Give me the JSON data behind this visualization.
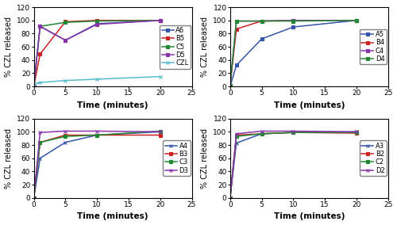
{
  "time_points": [
    0,
    1,
    5,
    10,
    20
  ],
  "subplots": [
    {
      "series": [
        {
          "label": "A6",
          "color": "#3355aa",
          "marker": "s",
          "values": [
            0,
            91,
            70,
            95,
            100
          ]
        },
        {
          "label": "B5",
          "color": "#cc2222",
          "marker": "s",
          "values": [
            0,
            49,
            98,
            100,
            100
          ]
        },
        {
          "label": "C5",
          "color": "#228833",
          "marker": "s",
          "values": [
            0,
            91,
            97,
            99,
            100
          ]
        },
        {
          "label": "D5",
          "color": "#8833aa",
          "marker": "s",
          "values": [
            0,
            91,
            70,
            94,
            100
          ]
        },
        {
          "label": "CZL",
          "color": "#55bbcc",
          "marker": "x",
          "values": [
            4,
            6,
            9,
            11,
            15
          ]
        }
      ]
    },
    {
      "series": [
        {
          "label": "A5",
          "color": "#3355aa",
          "marker": "s",
          "values": [
            0,
            32,
            72,
            90,
            100
          ]
        },
        {
          "label": "B4",
          "color": "#cc2222",
          "marker": "s",
          "values": [
            1,
            87,
            99,
            100,
            100
          ]
        },
        {
          "label": "C4",
          "color": "#8833aa",
          "marker": "s",
          "values": [
            1,
            99,
            99,
            100,
            100
          ]
        },
        {
          "label": "D4",
          "color": "#228833",
          "marker": "s",
          "values": [
            1,
            99,
            99,
            99,
            100
          ]
        }
      ]
    },
    {
      "series": [
        {
          "label": "A4",
          "color": "#3355aa",
          "marker": "x",
          "values": [
            0,
            60,
            84,
            95,
            100
          ]
        },
        {
          "label": "B3",
          "color": "#cc2222",
          "marker": "s",
          "values": [
            0,
            84,
            95,
            95,
            95
          ]
        },
        {
          "label": "C3",
          "color": "#228833",
          "marker": "s",
          "values": [
            0,
            84,
            93,
            95,
            101
          ]
        },
        {
          "label": "D3",
          "color": "#8833aa",
          "marker": "x",
          "values": [
            0,
            99,
            101,
            101,
            100
          ]
        }
      ]
    },
    {
      "series": [
        {
          "label": "A3",
          "color": "#3355aa",
          "marker": "x",
          "values": [
            0,
            83,
            97,
            99,
            100
          ]
        },
        {
          "label": "B2",
          "color": "#cc2222",
          "marker": "s",
          "values": [
            0,
            95,
            97,
            99,
            98
          ]
        },
        {
          "label": "C2",
          "color": "#228833",
          "marker": "s",
          "values": [
            0,
            93,
            97,
            99,
            99
          ]
        },
        {
          "label": "D2",
          "color": "#8833aa",
          "marker": "x",
          "values": [
            0,
            97,
            101,
            101,
            100
          ]
        }
      ]
    }
  ],
  "xlabel": "Time (minutes)",
  "ylabel": "% CZL released",
  "xlim": [
    0,
    25
  ],
  "xticks": [
    0,
    5,
    10,
    15,
    20,
    25
  ],
  "ylim": [
    0,
    120
  ],
  "yticks": [
    0,
    20,
    40,
    60,
    80,
    100,
    120
  ],
  "legend_fontsize": 6,
  "xlabel_fontsize": 7.5,
  "ylabel_fontsize": 7,
  "tick_fontsize": 6.5,
  "linewidth": 1.1,
  "markersize": 3.5
}
